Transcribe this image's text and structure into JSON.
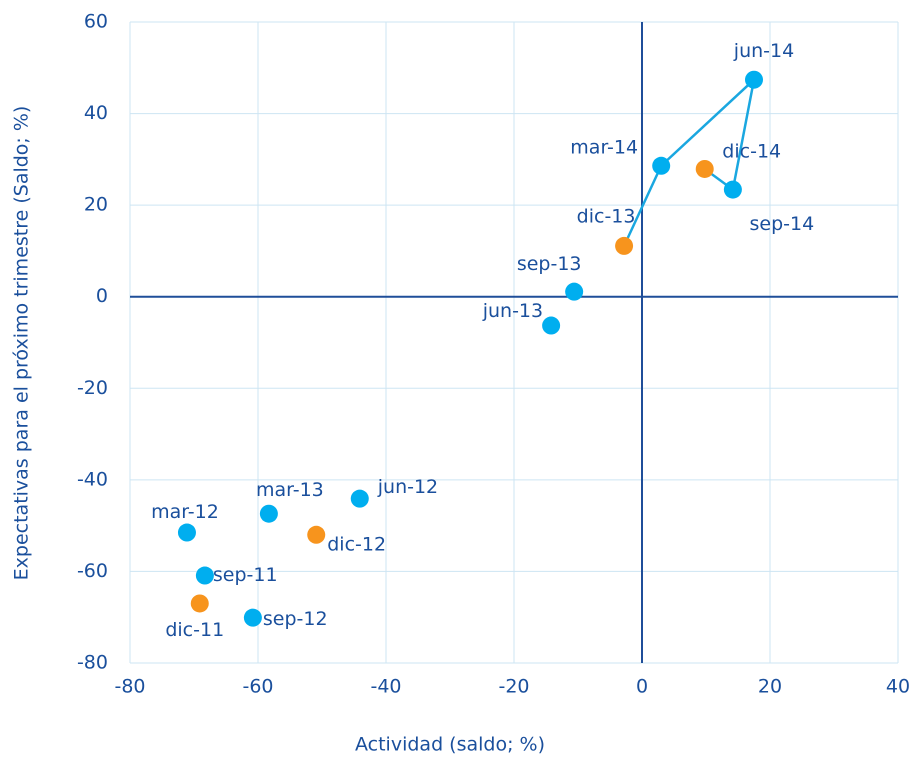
{
  "chart_data": {
    "type": "scatter",
    "x_label": "Actividad (saldo; %)",
    "y_label": "Expectativas para el próximo trimestre (Saldo; %)",
    "xlim": [
      -80,
      40
    ],
    "xticks": [
      -80,
      -60,
      -40,
      -20,
      0,
      20,
      40
    ],
    "ylim": [
      -80,
      60
    ],
    "yticks": [
      -80,
      -60,
      -40,
      -20,
      0,
      20,
      40,
      60
    ],
    "grid": true,
    "series": [
      {
        "color": "#00aeef",
        "x": [
          -68.3,
          -71.1,
          -44.1,
          -60.8,
          -58.3,
          -14.2,
          -10.6,
          3.0,
          17.5,
          14.2
        ],
        "values": [
          -60.9,
          -51.5,
          -44.1,
          -70.1,
          -47.4,
          -6.3,
          1.1,
          28.6,
          47.4,
          23.4
        ],
        "labels": [
          "sep-11",
          "mar-12",
          "jun-12",
          "sep-12",
          "mar-13",
          "jun-13",
          "sep-13",
          "mar-14",
          "jun-14",
          "sep-14"
        ]
      },
      {
        "color": "#f7941d",
        "x": [
          -69.1,
          -50.9,
          -2.8,
          9.8
        ],
        "values": [
          -67.0,
          -52.0,
          11.1,
          27.9
        ],
        "labels": [
          "dic-11",
          "dic-12",
          "dic-13",
          "dic-14"
        ]
      }
    ],
    "line": {
      "type": "line",
      "color": "#1aa7e0",
      "x": [
        -2.8,
        3.0,
        17.5,
        14.2,
        9.8
      ],
      "values": [
        11.1,
        28.6,
        47.4,
        23.4,
        27.9
      ]
    }
  }
}
